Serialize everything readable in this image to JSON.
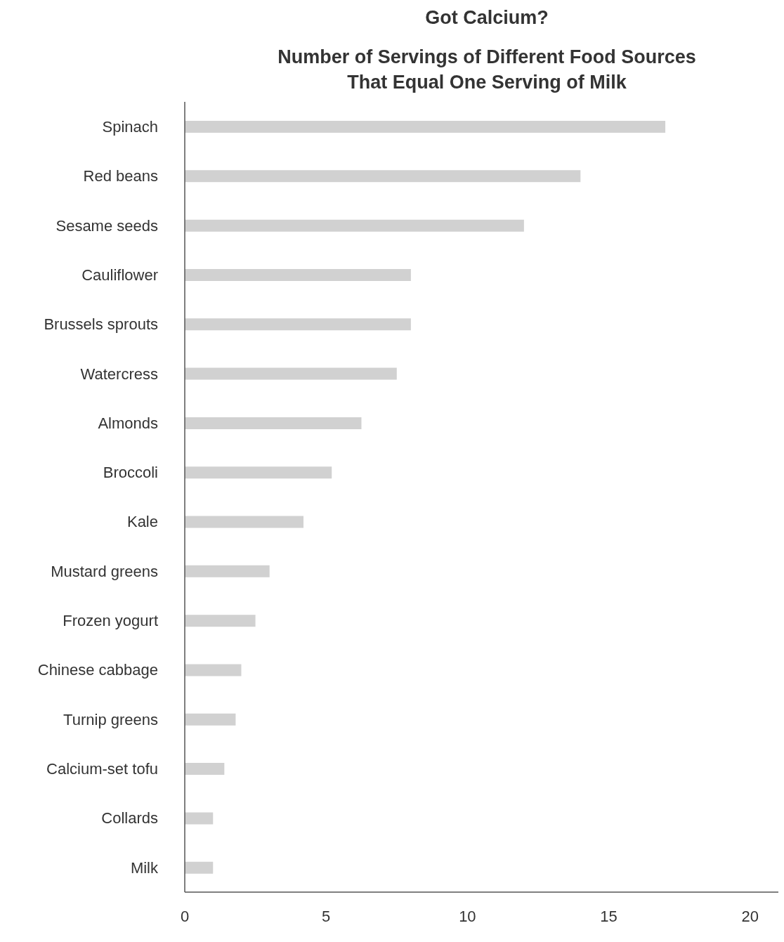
{
  "chart_data": {
    "type": "bar",
    "orientation": "horizontal",
    "title": "Got Calcium?",
    "subtitle": "Number of Servings of Different Food Sources\nThat Equal One Serving of Milk",
    "categories": [
      "Spinach",
      "Red beans",
      "Sesame seeds",
      "Cauliflower",
      "Brussels sprouts",
      "Watercress",
      "Almonds",
      "Broccoli",
      "Kale",
      "Mustard greens",
      "Frozen yogurt",
      "Chinese cabbage",
      "Turnip greens",
      "Calcium-set tofu",
      "Collards",
      "Milk"
    ],
    "values": [
      17,
      14,
      12,
      8,
      8,
      7.5,
      6.25,
      5.2,
      4.2,
      3,
      2.5,
      2,
      1.8,
      1.4,
      1,
      1
    ],
    "color": "#d1d1d1",
    "xlim": [
      0,
      21
    ],
    "xticks": [
      0,
      5,
      10,
      15,
      20
    ],
    "grid": false,
    "legend": false
  }
}
